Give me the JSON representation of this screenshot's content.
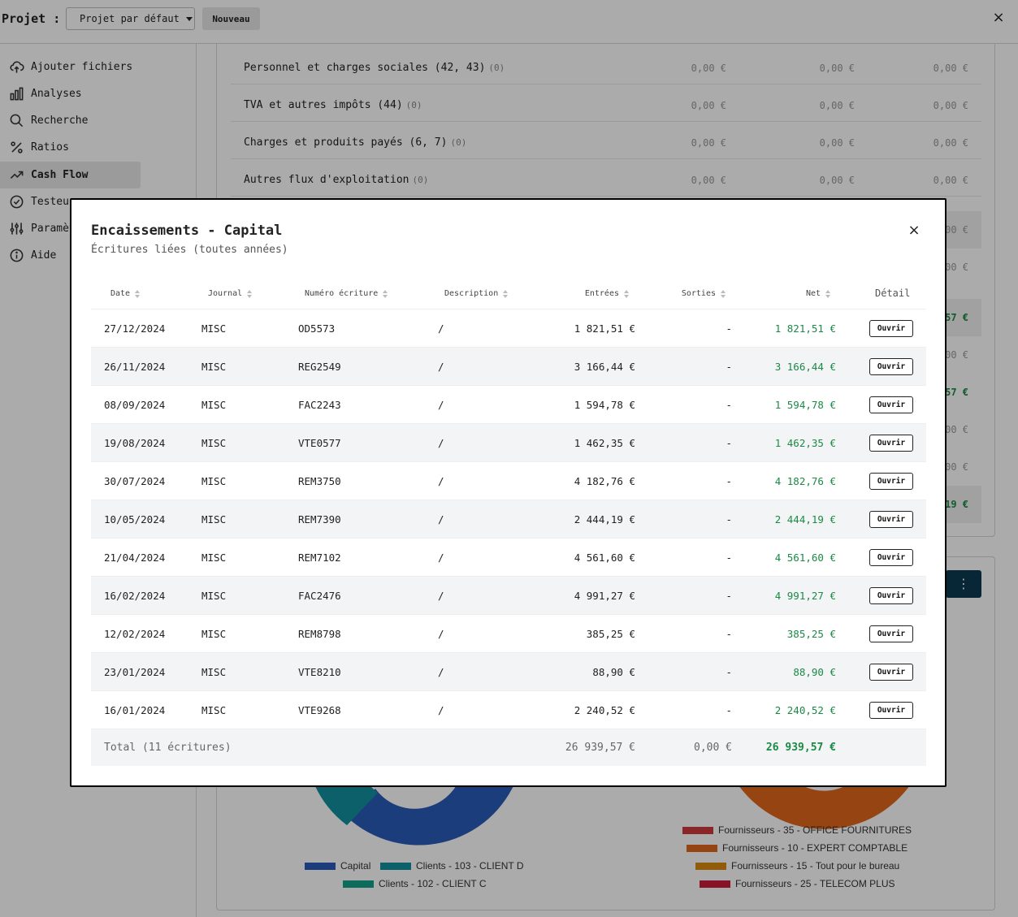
{
  "topbar": {
    "project_label": "Projet :",
    "project_select": "Projet par défaut",
    "new_button": "Nouveau",
    "close": "×"
  },
  "sidebar": {
    "items": [
      {
        "label": "Ajouter fichiers",
        "icon": "upload-cloud-icon"
      },
      {
        "label": "Analyses",
        "icon": "bar-chart-icon"
      },
      {
        "label": "Recherche",
        "icon": "search-icon"
      },
      {
        "label": "Ratios",
        "icon": "percent-icon"
      },
      {
        "label": "Cash Flow",
        "icon": "trend-up-icon",
        "active": true
      },
      {
        "label": "Testeur",
        "icon": "check-circle-icon"
      },
      {
        "label": "Paramètres",
        "icon": "sliders-icon"
      },
      {
        "label": "Aide",
        "icon": "info-icon"
      }
    ]
  },
  "cashflow": {
    "rows": [
      {
        "label": "Personnel et charges sociales (42, 43)",
        "count": "(0)",
        "v1": "0,00 €",
        "v2": "0,00 €",
        "v3": "0,00 €"
      },
      {
        "label": "TVA et autres impôts (44)",
        "count": "(0)",
        "v1": "0,00 €",
        "v2": "0,00 €",
        "v3": "0,00 €"
      },
      {
        "label": "Charges et produits payés (6, 7)",
        "count": "(0)",
        "v1": "0,00 €",
        "v2": "0,00 €",
        "v3": "0,00 €"
      },
      {
        "label": "Autres flux d'exploitation",
        "count": "(0)",
        "v1": "0,00 €",
        "v2": "0,00 €",
        "v3": "0,00 €"
      }
    ],
    "side_values": [
      "00 €",
      "00 €",
      "57 €",
      "00 €",
      "57 €",
      "00 €",
      "00 €",
      "19 €"
    ]
  },
  "chart_legend": {
    "left": [
      "Capital",
      "Clients - 103 - CLIENT D",
      "Clients - 102 - CLIENT C"
    ],
    "right": [
      "Fournisseurs - 35 - OFFICE FOURNITURES",
      "Fournisseurs - 10 - EXPERT COMPTABLE",
      "Fournisseurs - 15 - Tout pour le bureau",
      "Fournisseurs - 25 - TELECOM PLUS"
    ],
    "colors": {
      "capital": "#2b5cb8",
      "client_d": "#11909e",
      "client_c": "#14a08a",
      "office": "#d0393c",
      "expert": "#e0661c",
      "bureau": "#d98b10",
      "telecom": "#c81d3a"
    }
  },
  "modal": {
    "title": "Encaissements - Capital",
    "subtitle": "Écritures liées (toutes années)",
    "close": "×",
    "columns": {
      "date": "Date",
      "journal": "Journal",
      "numero": "Numéro écriture",
      "description": "Description",
      "entrees": "Entrées",
      "sorties": "Sorties",
      "net": "Net",
      "detail": "Détail"
    },
    "open_label": "Ouvrir",
    "rows": [
      {
        "date": "27/12/2024",
        "journal": "MISC",
        "numero": "OD5573",
        "description": "/",
        "entrees": "1 821,51 €",
        "sorties": "-",
        "net": "1 821,51 €"
      },
      {
        "date": "26/11/2024",
        "journal": "MISC",
        "numero": "REG2549",
        "description": "/",
        "entrees": "3 166,44 €",
        "sorties": "-",
        "net": "3 166,44 €"
      },
      {
        "date": "08/09/2024",
        "journal": "MISC",
        "numero": "FAC2243",
        "description": "/",
        "entrees": "1 594,78 €",
        "sorties": "-",
        "net": "1 594,78 €"
      },
      {
        "date": "19/08/2024",
        "journal": "MISC",
        "numero": "VTE0577",
        "description": "/",
        "entrees": "1 462,35 €",
        "sorties": "-",
        "net": "1 462,35 €"
      },
      {
        "date": "30/07/2024",
        "journal": "MISC",
        "numero": "REM3750",
        "description": "/",
        "entrees": "4 182,76 €",
        "sorties": "-",
        "net": "4 182,76 €"
      },
      {
        "date": "10/05/2024",
        "journal": "MISC",
        "numero": "REM7390",
        "description": "/",
        "entrees": "2 444,19 €",
        "sorties": "-",
        "net": "2 444,19 €"
      },
      {
        "date": "21/04/2024",
        "journal": "MISC",
        "numero": "REM7102",
        "description": "/",
        "entrees": "4 561,60 €",
        "sorties": "-",
        "net": "4 561,60 €"
      },
      {
        "date": "16/02/2024",
        "journal": "MISC",
        "numero": "FAC2476",
        "description": "/",
        "entrees": "4 991,27 €",
        "sorties": "-",
        "net": "4 991,27 €"
      },
      {
        "date": "12/02/2024",
        "journal": "MISC",
        "numero": "REM8798",
        "description": "/",
        "entrees": "385,25 €",
        "sorties": "-",
        "net": "385,25 €"
      },
      {
        "date": "23/01/2024",
        "journal": "MISC",
        "numero": "VTE8210",
        "description": "/",
        "entrees": "88,90 €",
        "sorties": "-",
        "net": "88,90 €"
      },
      {
        "date": "16/01/2024",
        "journal": "MISC",
        "numero": "VTE9268",
        "description": "/",
        "entrees": "2 240,52 €",
        "sorties": "-",
        "net": "2 240,52 €"
      }
    ],
    "total": {
      "label": "Total (11 écritures)",
      "entrees": "26 939,57 €",
      "sorties": "0,00 €",
      "net": "26 939,57 €"
    }
  }
}
